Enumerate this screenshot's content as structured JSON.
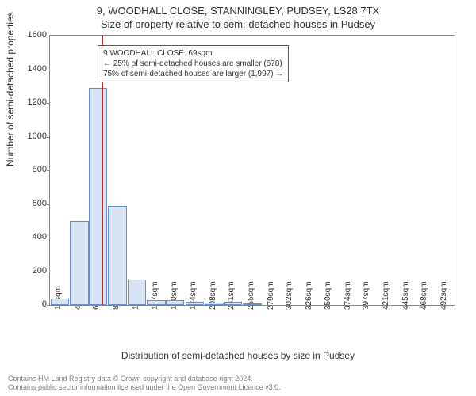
{
  "title": "9, WOODHALL CLOSE, STANNINGLEY, PUDSEY, LS28 7TX",
  "subtitle": "Size of property relative to semi-detached houses in Pudsey",
  "ylabel": "Number of semi-detached properties",
  "xlabel": "Distribution of semi-detached houses by size in Pudsey",
  "chart": {
    "type": "histogram",
    "xlim": [
      6,
      504
    ],
    "ylim": [
      0,
      1600
    ],
    "ytick_step": 200,
    "yticks": [
      0,
      200,
      400,
      600,
      800,
      1000,
      1200,
      1400,
      1600
    ],
    "xticks": [
      18,
      42,
      65,
      89,
      113,
      137,
      160,
      184,
      208,
      231,
      255,
      279,
      302,
      326,
      350,
      374,
      397,
      421,
      445,
      468,
      492
    ],
    "xtick_unit": "sqm",
    "bar_color": "#d6e4f5",
    "bar_border_color": "#6a8fc8",
    "background_color": "#ffffff",
    "border_color": "#888888",
    "bars": [
      {
        "x": 18,
        "value": 40
      },
      {
        "x": 42,
        "value": 500
      },
      {
        "x": 65,
        "value": 1290
      },
      {
        "x": 89,
        "value": 590
      },
      {
        "x": 113,
        "value": 150
      },
      {
        "x": 137,
        "value": 30
      },
      {
        "x": 160,
        "value": 30
      },
      {
        "x": 184,
        "value": 20
      },
      {
        "x": 208,
        "value": 15
      },
      {
        "x": 231,
        "value": 20
      },
      {
        "x": 255,
        "value": 10
      },
      {
        "x": 279,
        "value": 0
      },
      {
        "x": 302,
        "value": 0
      },
      {
        "x": 326,
        "value": 0
      },
      {
        "x": 350,
        "value": 0
      },
      {
        "x": 374,
        "value": 0
      },
      {
        "x": 397,
        "value": 0
      },
      {
        "x": 421,
        "value": 0
      },
      {
        "x": 445,
        "value": 0
      },
      {
        "x": 468,
        "value": 0
      },
      {
        "x": 492,
        "value": 0
      }
    ],
    "bar_width_sqm": 23,
    "reference_line": {
      "value": 69,
      "color": "#c43030"
    },
    "annotation": {
      "border_color": "#c43030",
      "background_color": "#ffffff",
      "lines": [
        "9 WOODHALL CLOSE: 69sqm",
        "← 25% of semi-detached houses are smaller (678)",
        "75% of semi-detached houses are larger (1,997) →"
      ]
    }
  },
  "footer": {
    "line1": "Contains HM Land Registry data © Crown copyright and database right 2024.",
    "line2": "Contains public sector information licensed under the Open Government Licence v3.0.",
    "color": "#808080"
  }
}
